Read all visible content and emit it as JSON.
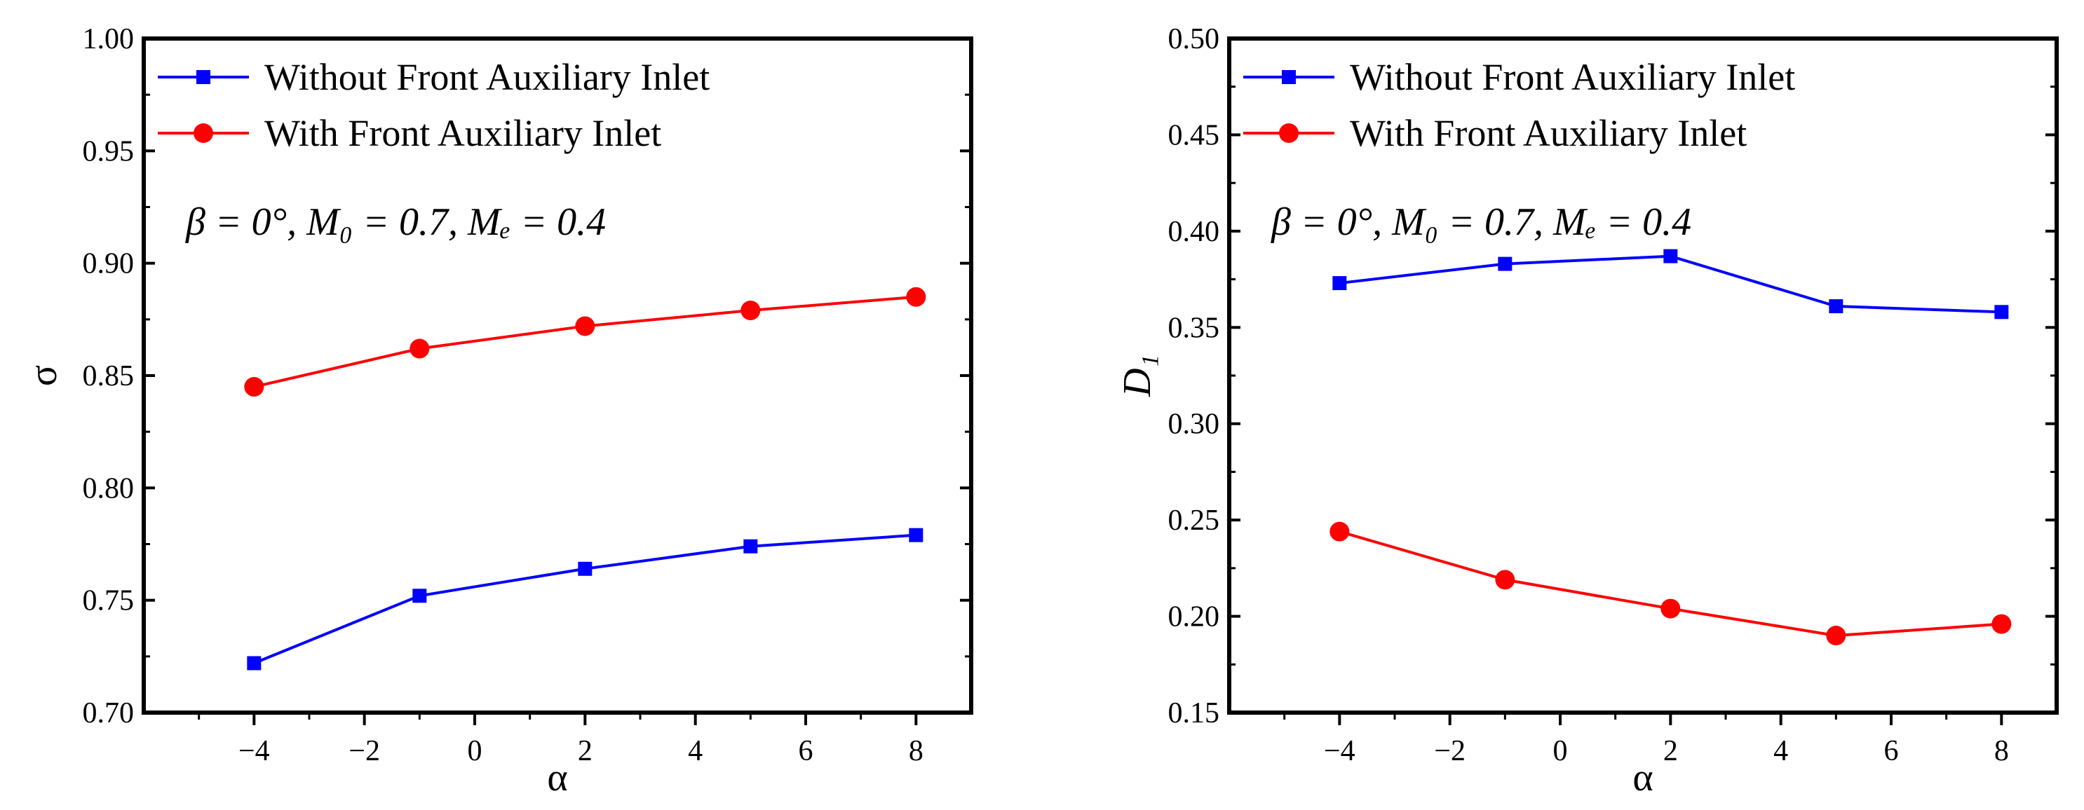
{
  "chart_data": [
    {
      "type": "line",
      "x": [
        -4,
        -1,
        2,
        5,
        8
      ],
      "xlim": [
        -6,
        9
      ],
      "ylim": [
        0.7,
        1.0
      ],
      "xticks": [
        -4,
        -2,
        0,
        2,
        4,
        6,
        8
      ],
      "xtick_labels": [
        "−4",
        "−2",
        "0",
        "2",
        "4",
        "6",
        "8"
      ],
      "yticks": [
        0.7,
        0.75,
        0.8,
        0.85,
        0.9,
        0.95,
        1.0
      ],
      "ytick_labels": [
        "0.70",
        "0.75",
        "0.80",
        "0.85",
        "0.90",
        "0.95",
        "1.00"
      ],
      "xlabel": "α",
      "ylabel": "σ",
      "annotation": "β = 0°, M₀ = 0.7, Mₑ = 0.4",
      "legend_position": "top-left",
      "series": [
        {
          "name": "Without Front Auxiliary Inlet",
          "color": "#0000ff",
          "marker": "square",
          "values": [
            0.722,
            0.752,
            0.764,
            0.774,
            0.779
          ]
        },
        {
          "name": "With Front Auxiliary Inlet",
          "color": "#ff0000",
          "marker": "circle",
          "values": [
            0.845,
            0.862,
            0.872,
            0.879,
            0.885
          ]
        }
      ]
    },
    {
      "type": "line",
      "x": [
        -4,
        -1,
        2,
        5,
        8
      ],
      "xlim": [
        -6,
        9
      ],
      "ylim": [
        0.15,
        0.5
      ],
      "xticks": [
        -4,
        -2,
        0,
        2,
        4,
        6,
        8
      ],
      "xtick_labels": [
        "−4",
        "−2",
        "0",
        "2",
        "4",
        "6",
        "8"
      ],
      "yticks": [
        0.15,
        0.2,
        0.25,
        0.3,
        0.35,
        0.4,
        0.45,
        0.5
      ],
      "ytick_labels": [
        "0.15",
        "0.20",
        "0.25",
        "0.30",
        "0.35",
        "0.40",
        "0.45",
        "0.50"
      ],
      "xlabel": "α",
      "ylabel": "D₁",
      "annotation": "β = 0°, M₀ = 0.7, Mₑ = 0.4",
      "legend_position": "top-left",
      "series": [
        {
          "name": "Without Front Auxiliary Inlet",
          "color": "#0000ff",
          "marker": "square",
          "values": [
            0.373,
            0.383,
            0.387,
            0.361,
            0.358
          ]
        },
        {
          "name": "With Front Auxiliary Inlet",
          "color": "#ff0000",
          "marker": "circle",
          "values": [
            0.244,
            0.219,
            0.204,
            0.19,
            0.196
          ]
        }
      ]
    }
  ]
}
